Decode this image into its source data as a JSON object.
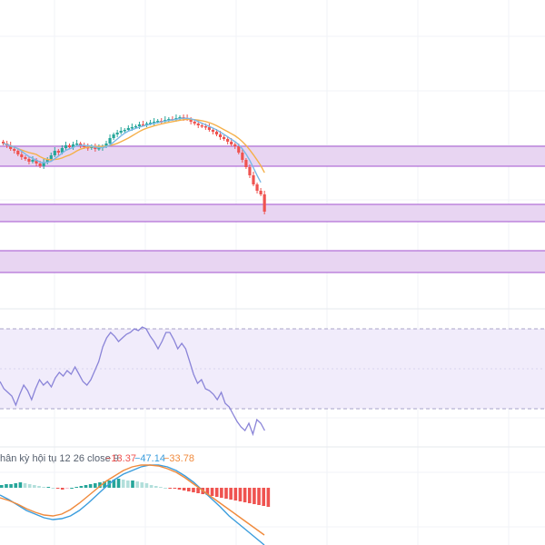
{
  "colors": {
    "up": "#26a69a",
    "down": "#ef5350",
    "ma_fast": "#7ab8e6",
    "ma_slow": "#f5b04a",
    "zone_fill": "#e8d5f2",
    "zone_border": "#b06cd6",
    "rsi_line": "#8a84d8",
    "rsi_band": "#f1ecfb",
    "rsi_band_border": "#a8a3c8",
    "macd_line": "#3b9ddd",
    "signal_line": "#f08a3c",
    "hist_up_strong": "#26a69a",
    "hist_up_weak": "#b2dfdb",
    "hist_down_strong": "#ef5350",
    "hist_down_weak": "#f8bbd0",
    "grid": "#f0f3f7",
    "legend_gray": "#555f6d"
  },
  "macd_legend": {
    "label": "hân kỳ hội tụ 12 26 close 9",
    "hist_value": "−13.37",
    "macd_value": "−47.14",
    "signal_value": "−33.78"
  },
  "chart_data": [
    {
      "type": "candlestick",
      "title": "",
      "zones": [
        {
          "name": "resistance-zone",
          "y_top_frac": 0.0,
          "note": "zone"
        },
        {
          "name": "support-zone-1"
        },
        {
          "name": "support-zone-2"
        }
      ],
      "series": [
        {
          "name": "",
          "kind": "ma_fast"
        },
        {
          "name": "",
          "kind": "ma_slow"
        }
      ]
    },
    {
      "type": "line",
      "title": "",
      "series": [
        {
          "name": "",
          "kind": "rsi"
        }
      ]
    },
    {
      "type": "bar",
      "title": "hân kỳ hội tụ 12 26 close 9",
      "series": [
        {
          "name": "",
          "kind": "histogram"
        },
        {
          "name": "",
          "kind": "macd"
        },
        {
          "name": "",
          "kind": "signal"
        }
      ]
    }
  ]
}
